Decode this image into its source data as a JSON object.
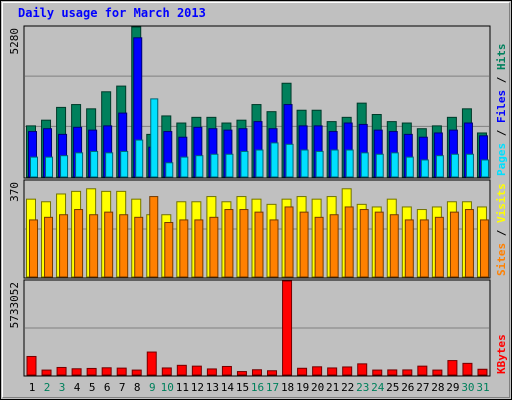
{
  "title": "Daily usage for March 2013",
  "colors": {
    "hits": "#00805c",
    "files": "#0000ff",
    "pages": "#00e0ff",
    "visits": "#ffff00",
    "sites": "#ff8000",
    "kbytes": "#ff0000",
    "weekend_label": "#00805c",
    "weekday_label": "#000000"
  },
  "legend": {
    "top": {
      "pages": "Pages",
      "files": "Files",
      "hits": "Hits",
      "sep": " / "
    },
    "middle": {
      "sites": "Sites",
      "visits": "Visits",
      "sep": " / "
    },
    "bottom": {
      "kbytes": "KBytes"
    }
  },
  "y_max_labels": {
    "top": "5280",
    "middle": "370",
    "bottom": "5733052"
  },
  "chart_data": {
    "type": "bar",
    "title": "Daily usage for March 2013",
    "categories": [
      "1",
      "2",
      "3",
      "4",
      "5",
      "6",
      "7",
      "8",
      "9",
      "10",
      "11",
      "12",
      "13",
      "14",
      "15",
      "16",
      "17",
      "18",
      "19",
      "20",
      "21",
      "22",
      "23",
      "24",
      "25",
      "26",
      "27",
      "28",
      "29",
      "30",
      "31"
    ],
    "weekend_days": [
      "2",
      "3",
      "9",
      "10",
      "16",
      "17",
      "23",
      "24",
      "30",
      "31"
    ],
    "panels": [
      {
        "name": "top",
        "ylim": [
          0,
          5280
        ],
        "series": [
          {
            "name": "Hits",
            "values": [
              1800,
              2000,
              2450,
              2550,
              2400,
              3000,
              3200,
              5280,
              1500,
              2150,
              1900,
              2100,
              2100,
              1900,
              2000,
              2550,
              2300,
              3300,
              2350,
              2350,
              1950,
              2100,
              2600,
              2200,
              1950,
              1900,
              1700,
              1800,
              2100,
              2400,
              1550
            ]
          },
          {
            "name": "Files",
            "values": [
              1600,
              1700,
              1500,
              1750,
              1650,
              1800,
              2250,
              4900,
              1050,
              1600,
              1400,
              1750,
              1700,
              1650,
              1700,
              1950,
              1700,
              2550,
              1800,
              1800,
              1600,
              1900,
              1850,
              1650,
              1600,
              1500,
              1400,
              1550,
              1650,
              1900,
              1450
            ]
          },
          {
            "name": "Pages",
            "values": [
              700,
              700,
              750,
              850,
              900,
              850,
              900,
              1300,
              2750,
              500,
              700,
              750,
              800,
              800,
              900,
              950,
              1200,
              1150,
              950,
              900,
              950,
              950,
              850,
              800,
              850,
              700,
              600,
              750,
              800,
              800,
              600
            ]
          }
        ]
      },
      {
        "name": "middle",
        "ylim": [
          0,
          370
        ],
        "series": [
          {
            "name": "Visits",
            "values": [
              300,
              290,
              320,
              330,
              340,
              330,
              330,
              300,
              240,
              240,
              290,
              290,
              310,
              290,
              310,
              300,
              280,
              300,
              310,
              300,
              310,
              340,
              280,
              270,
              300,
              270,
              260,
              270,
              290,
              290,
              270
            ]
          },
          {
            "name": "Sites",
            "values": [
              220,
              230,
              240,
              260,
              240,
              250,
              240,
              230,
              310,
              210,
              220,
              220,
              230,
              260,
              260,
              250,
              220,
              270,
              250,
              230,
              240,
              270,
              260,
              250,
              240,
              220,
              220,
              230,
              250,
              260,
              220
            ]
          }
        ]
      },
      {
        "name": "bottom",
        "ylim": [
          0,
          5733052
        ],
        "series": [
          {
            "name": "KBytes",
            "values": [
              1130000,
              300000,
              460000,
              380000,
              400000,
              440000,
              420000,
              300000,
              1400000,
              430000,
              590000,
              540000,
              370000,
              520000,
              210000,
              320000,
              260000,
              5733052,
              410000,
              500000,
              430000,
              490000,
              680000,
              300000,
              310000,
              310000,
              540000,
              300000,
              880000,
              710000,
              350000
            ]
          }
        ]
      }
    ]
  }
}
